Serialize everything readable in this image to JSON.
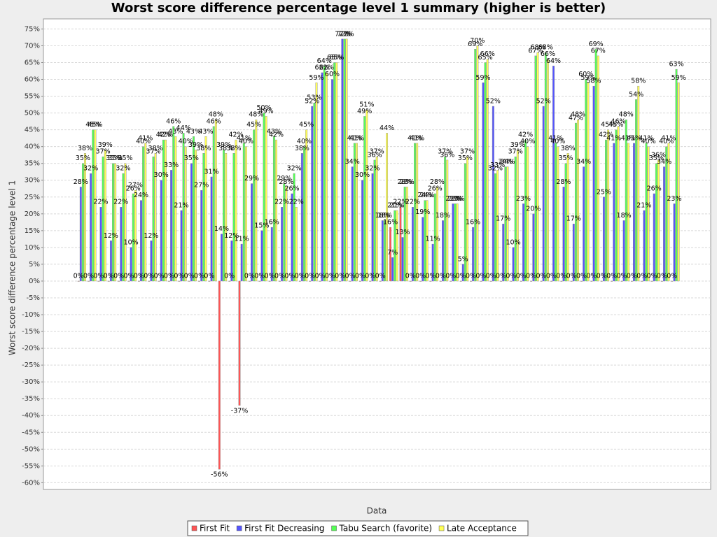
{
  "chart_data": {
    "type": "bar",
    "title": "Worst score difference percentage level 1 summary (higher is better)",
    "x_label": "Data",
    "y_label": "Worst score difference percentage level 1",
    "categories": [
      null,
      null,
      null,
      null,
      null,
      null,
      null,
      null,
      null,
      null,
      null,
      null,
      null,
      null,
      null,
      null,
      null,
      null,
      null,
      null,
      null,
      null,
      null,
      null,
      null,
      null,
      null,
      null,
      null,
      null,
      null,
      null,
      null,
      null,
      null,
      null,
      null,
      null,
      null,
      null,
      null,
      null,
      null,
      null,
      null,
      null,
      null,
      null,
      null,
      null,
      null,
      null,
      null,
      null,
      null,
      null,
      null,
      null,
      null,
      null
    ],
    "ylim": [
      -62,
      78
    ],
    "yticks": [
      {
        "value": -60,
        "label": "-60%"
      },
      {
        "value": -55,
        "label": "-55%"
      },
      {
        "value": -50,
        "label": "-50%"
      },
      {
        "value": -45,
        "label": "-45%"
      },
      {
        "value": -40,
        "label": "-40%"
      },
      {
        "value": -35,
        "label": "-35%"
      },
      {
        "value": -30,
        "label": "-30%"
      },
      {
        "value": -25,
        "label": "-25%"
      },
      {
        "value": -20,
        "label": "-20%"
      },
      {
        "value": -15,
        "label": "-15%"
      },
      {
        "value": -10,
        "label": "-10%"
      },
      {
        "value": -5,
        "label": "-5%"
      },
      {
        "value": 0,
        "label": "0%"
      },
      {
        "value": 5,
        "label": "5%"
      },
      {
        "value": 10,
        "label": "10%"
      },
      {
        "value": 15,
        "label": "15%"
      },
      {
        "value": 20,
        "label": "20%"
      },
      {
        "value": 25,
        "label": "25%"
      },
      {
        "value": 30,
        "label": "30%"
      },
      {
        "value": 35,
        "label": "35%"
      },
      {
        "value": 40,
        "label": "40%"
      },
      {
        "value": 45,
        "label": "45%"
      },
      {
        "value": 50,
        "label": "50%"
      },
      {
        "value": 55,
        "label": "55%"
      },
      {
        "value": 60,
        "label": "60%"
      },
      {
        "value": 65,
        "label": "65%"
      },
      {
        "value": 70,
        "label": "70%"
      },
      {
        "value": 75,
        "label": "75%"
      }
    ],
    "grid": true,
    "legend": "bottom",
    "series": [
      {
        "name": "First Fit",
        "color": "#ff5555",
        "values": [
          0,
          0,
          0,
          0,
          0,
          0,
          0,
          0,
          0,
          0,
          0,
          0,
          0,
          0,
          -56,
          0,
          -37,
          0,
          0,
          0,
          0,
          0,
          0,
          0,
          0,
          0,
          0,
          0,
          0,
          0,
          0,
          16,
          22,
          0,
          0,
          0,
          0,
          0,
          0,
          0,
          0,
          0,
          0,
          0,
          0,
          0,
          0,
          0,
          0,
          0,
          0,
          0,
          0,
          0,
          0,
          0,
          0,
          0,
          0,
          0
        ],
        "value_labels": [
          "0%",
          "0%",
          "0%",
          "0%",
          "0%",
          "0%",
          "0%",
          "0%",
          "0%",
          "0%",
          "0%",
          "0%",
          "0%",
          "0%",
          "-56%",
          "0%",
          "-37%",
          "0%",
          "0%",
          "0%",
          "0%",
          "0%",
          "0%",
          "0%",
          "0%",
          "0%",
          "0%",
          "0%",
          "0%",
          "0%",
          "0%",
          "16%",
          "22%",
          "0%",
          "0%",
          "0%",
          "0%",
          "0%",
          "0%",
          "0%",
          "0%",
          "0%",
          "0%",
          "0%",
          "0%",
          "0%",
          "0%",
          "0%",
          "0%",
          "0%",
          "0%",
          "0%",
          "0%",
          "0%",
          "0%",
          "0%",
          "0%",
          "0%",
          "0%",
          "0%"
        ]
      },
      {
        "name": "First Fit Decreasing",
        "color": "#5555ff",
        "values": [
          28,
          32,
          22,
          12,
          22,
          10,
          24,
          12,
          30,
          33,
          21,
          35,
          27,
          31,
          14,
          12,
          11,
          29,
          15,
          16,
          22,
          26,
          38,
          52,
          62,
          60,
          72,
          34,
          30,
          32,
          18,
          7,
          13,
          22,
          19,
          11,
          18,
          23,
          5,
          16,
          59,
          52,
          17,
          10,
          23,
          20,
          52,
          64,
          28,
          17,
          34,
          58,
          25,
          41,
          18,
          41,
          21,
          26,
          34,
          23
        ],
        "value_labels": [
          "28%",
          "32%",
          "22%",
          "12%",
          "22%",
          "10%",
          "24%",
          "12%",
          "30%",
          "33%",
          "21%",
          "35%",
          "27%",
          "31%",
          "14%",
          "12%",
          "11%",
          "29%",
          "15%",
          "16%",
          "22%",
          "26%",
          "38%",
          "52%",
          "62%",
          "60%",
          "72%",
          "34%",
          "30%",
          "32%",
          "18%",
          "7%",
          "13%",
          "22%",
          "19%",
          "11%",
          "18%",
          "23%",
          "5%",
          "16%",
          "59%",
          "52%",
          "17%",
          "10%",
          "23%",
          "20%",
          "52%",
          "64%",
          "28%",
          "17%",
          "34%",
          "58%",
          "25%",
          "41%",
          "18%",
          "41%",
          "21%",
          "26%",
          "34%",
          "23%"
        ]
      },
      {
        "name": "Tabu Search (favorite)",
        "color": "#55ff55",
        "values": [
          35,
          45,
          37,
          35,
          32,
          26,
          40,
          37,
          42,
          46,
          44,
          43,
          38,
          46,
          39,
          38,
          41,
          45,
          50,
          43,
          29,
          32,
          40,
          53,
          64,
          65,
          72,
          41,
          49,
          36,
          18,
          21,
          28,
          41,
          24,
          26,
          37,
          23,
          35,
          69,
          65,
          32,
          34,
          37,
          42,
          67,
          68,
          41,
          35,
          47,
          60,
          69,
          42,
          45,
          48,
          54,
          41,
          35,
          40,
          63
        ],
        "value_labels": [
          "35%",
          "45%",
          "37%",
          "35%",
          "32%",
          "26%",
          "40%",
          "37%",
          "42%",
          "46%",
          "44%",
          "43%",
          "38%",
          "46%",
          "39%",
          "38%",
          "41%",
          "45%",
          "50%",
          "43%",
          "29%",
          "32%",
          "40%",
          "53%",
          "64%",
          "65%",
          "72%",
          "41%",
          "49%",
          "36%",
          "18%",
          "21%",
          "28%",
          "41%",
          "24%",
          "26%",
          "37%",
          "23%",
          "35%",
          "69%",
          "65%",
          "32%",
          "34%",
          "37%",
          "42%",
          "67%",
          "68%",
          "41%",
          "35%",
          "47%",
          "60%",
          "69%",
          "42%",
          "45%",
          "48%",
          "54%",
          "41%",
          "35%",
          "40%",
          "63%"
        ]
      },
      {
        "name": "Late Acceptance",
        "color": "#ffff55",
        "values": [
          38,
          45,
          39,
          35,
          35,
          27,
          41,
          38,
          42,
          43,
          40,
          39,
          43,
          48,
          38,
          42,
          40,
          48,
          49,
          42,
          28,
          22,
          45,
          59,
          62,
          65,
          72,
          41,
          51,
          37,
          44,
          21,
          28,
          41,
          24,
          28,
          36,
          23,
          37,
          70,
          66,
          33,
          34,
          39,
          40,
          68,
          66,
          40,
          38,
          48,
          59,
          67,
          45,
          46,
          41,
          58,
          40,
          36,
          41,
          59
        ],
        "value_labels": [
          "38%",
          "45%",
          "39%",
          "35%",
          "35%",
          "27%",
          "41%",
          "38%",
          "42%",
          "43%",
          "40%",
          "39%",
          "43%",
          "48%",
          "38%",
          "42%",
          "40%",
          "48%",
          "49%",
          "42%",
          "28%",
          "22%",
          "45%",
          "59%",
          "62%",
          "65%",
          "72%",
          "41%",
          "51%",
          "37%",
          "44%",
          "21%",
          "28%",
          "41%",
          "24%",
          "28%",
          "36%",
          "23%",
          "37%",
          "70%",
          "66%",
          "33%",
          "34%",
          "39%",
          "40%",
          "68%",
          "66%",
          "40%",
          "38%",
          "48%",
          "59%",
          "67%",
          "45%",
          "46%",
          "41%",
          "58%",
          "40%",
          "36%",
          "41%",
          "59%"
        ]
      }
    ]
  }
}
